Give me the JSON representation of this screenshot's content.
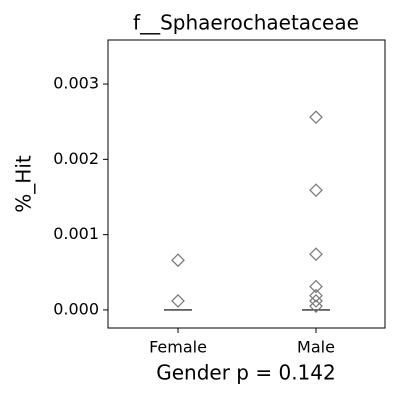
{
  "chart_data": {
    "type": "strip",
    "title": "f__Sphaerochaetaceae",
    "ylabel": "%_Hit",
    "xlabel": "Gender p = 0.142",
    "categories": [
      "Female",
      "Male"
    ],
    "values": [
      [
        0.00066,
        0.00012
      ],
      [
        0.00256,
        0.00159,
        0.00074,
        0.00031,
        0.00019,
        0.00012,
        5e-05
      ]
    ],
    "medians": [
      0,
      0
    ],
    "color": "#777777",
    "ylim": [
      -0.00024,
      0.003585
    ],
    "yticks": [
      {
        "value": 0,
        "label": "0.000"
      },
      {
        "value": 0.001,
        "label": "0.001"
      },
      {
        "value": 0.002,
        "label": "0.002"
      },
      {
        "value": 0.003,
        "label": "0.003"
      }
    ]
  }
}
